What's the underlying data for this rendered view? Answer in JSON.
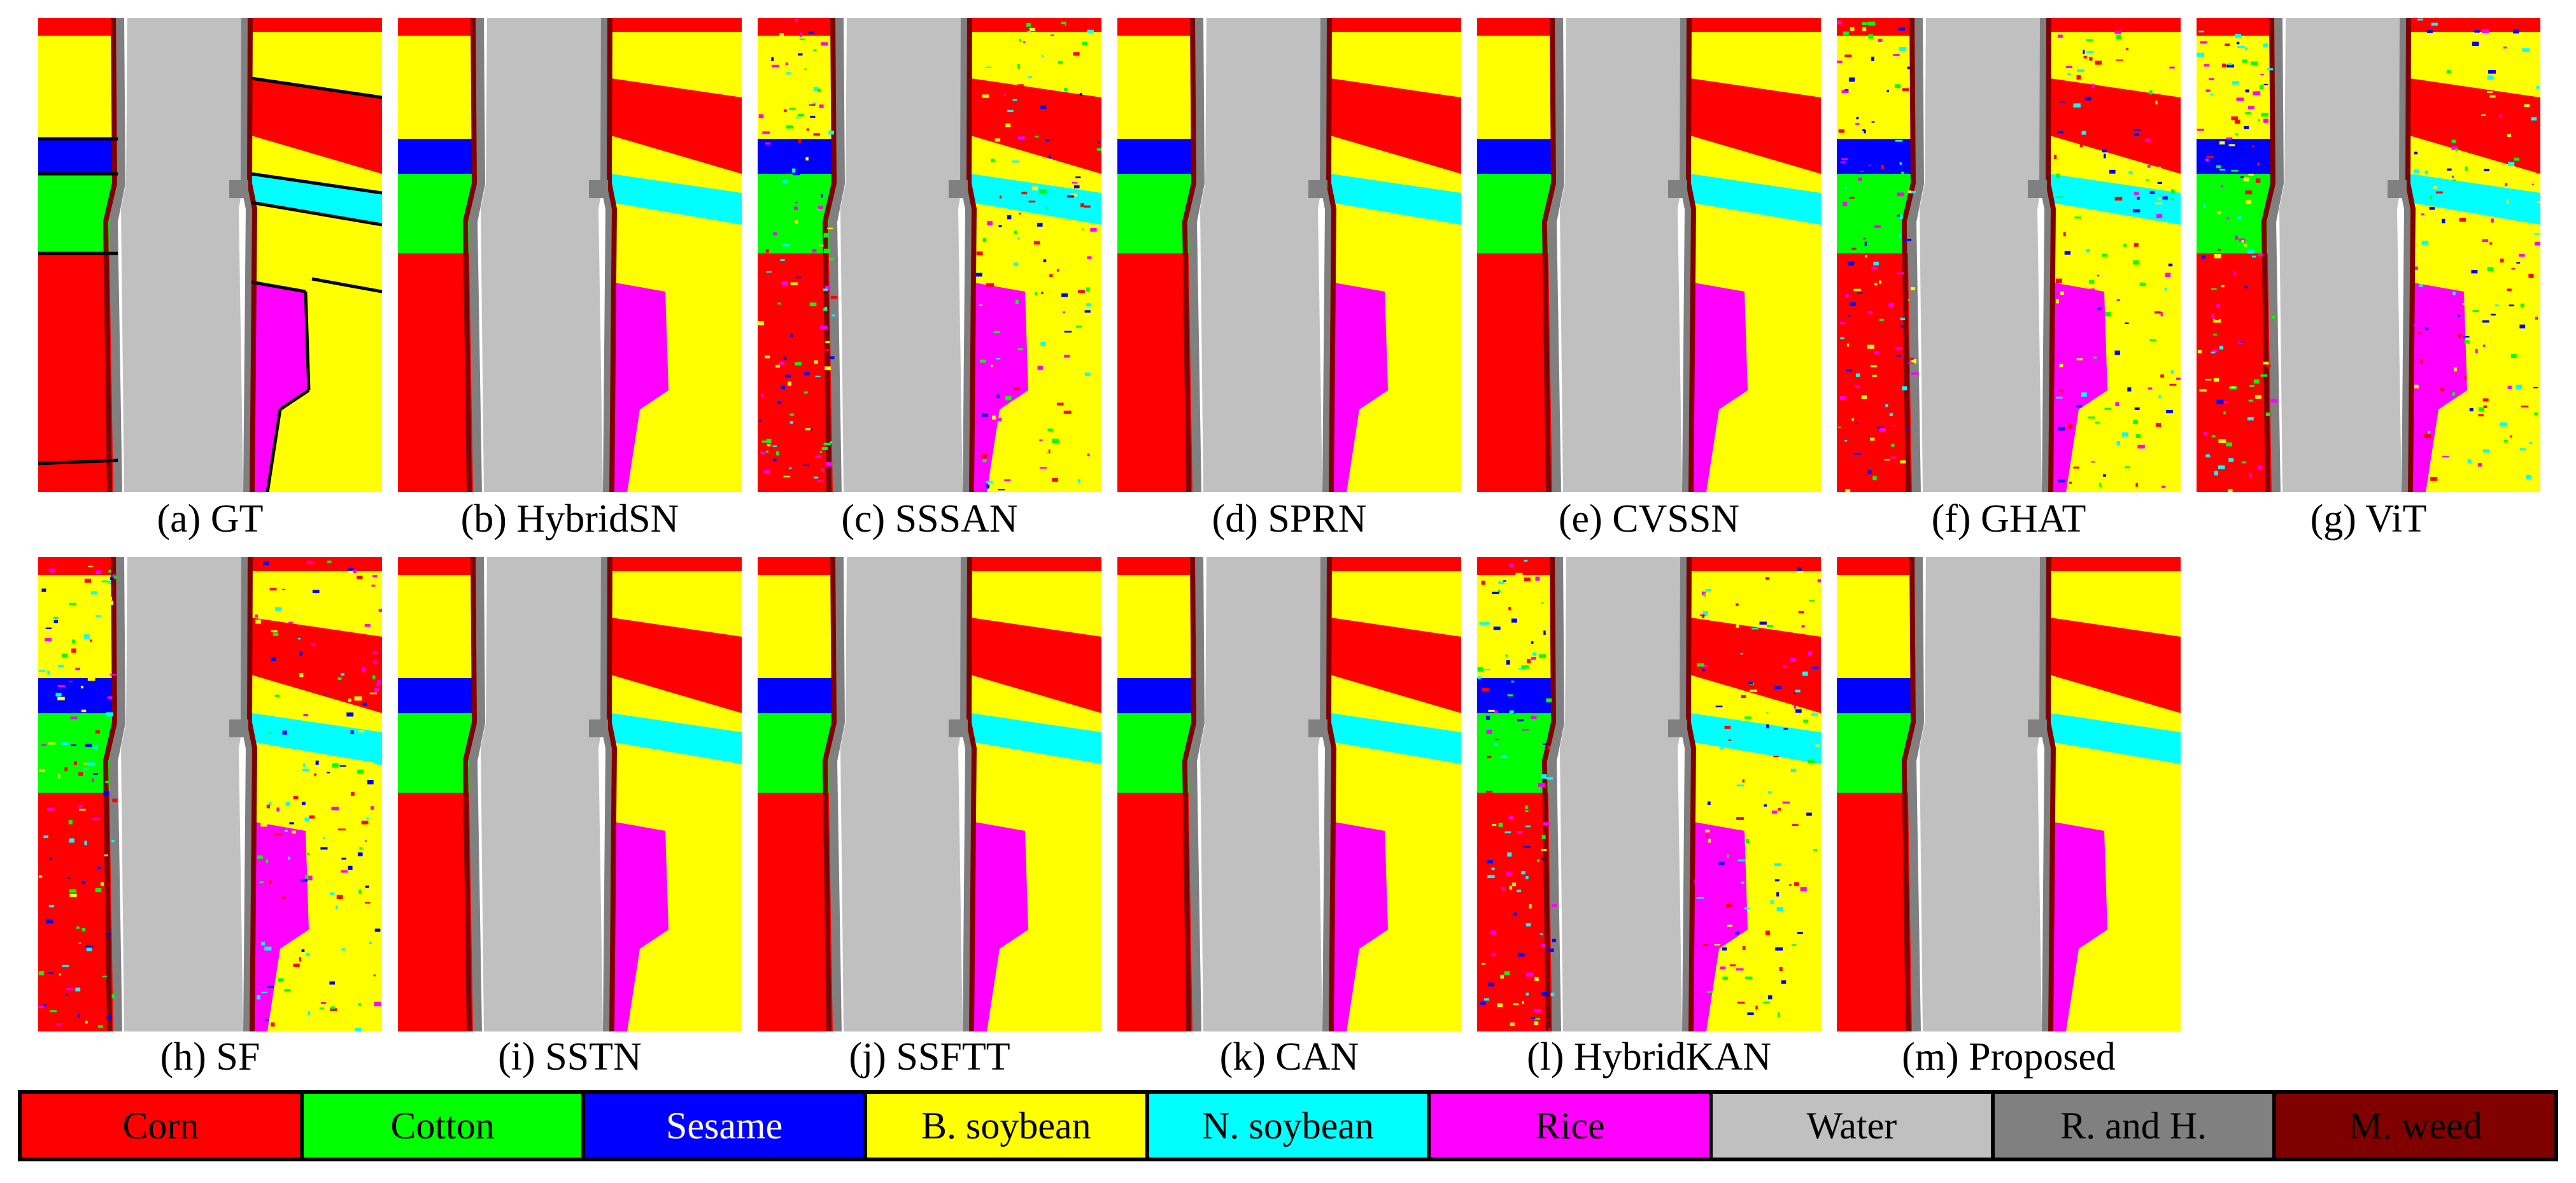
{
  "panels": [
    {
      "caption": "(a) GT",
      "variant": "gt"
    },
    {
      "caption": "(b) HybridSN",
      "variant": "clean"
    },
    {
      "caption": "(c) SSSAN",
      "variant": "noisy"
    },
    {
      "caption": "(d) SPRN",
      "variant": "clean"
    },
    {
      "caption": "(e) CVSSN",
      "variant": "clean"
    },
    {
      "caption": "(f) GHAT",
      "variant": "noisy"
    },
    {
      "caption": "(g) ViT",
      "variant": "noisy"
    },
    {
      "caption": "(h) SF",
      "variant": "noisy"
    },
    {
      "caption": "(i) SSTN",
      "variant": "clean"
    },
    {
      "caption": "(j) SSFTT",
      "variant": "clean"
    },
    {
      "caption": "(k) CAN",
      "variant": "clean"
    },
    {
      "caption": "(l) HybridKAN",
      "variant": "noisy"
    },
    {
      "caption": "(m) Proposed",
      "variant": "clean"
    }
  ],
  "legend": [
    {
      "label": "Corn",
      "color": "#ff0000",
      "text_color": "#000000"
    },
    {
      "label": "Cotton",
      "color": "#00ff00",
      "text_color": "#000000"
    },
    {
      "label": "Sesame",
      "color": "#0000ff",
      "text_color": "#ffffff"
    },
    {
      "label": "B. soybean",
      "color": "#ffff00",
      "text_color": "#000000"
    },
    {
      "label": "N. soybean",
      "color": "#00ffff",
      "text_color": "#000000"
    },
    {
      "label": "Rice",
      "color": "#ff00ff",
      "text_color": "#000000"
    },
    {
      "label": "Water",
      "color": "#c0c0c0",
      "text_color": "#000000"
    },
    {
      "label": "R. and H.",
      "color": "#808080",
      "text_color": "#000000"
    },
    {
      "label": "M. weed",
      "color": "#800000",
      "text_color": "#000000"
    }
  ]
}
